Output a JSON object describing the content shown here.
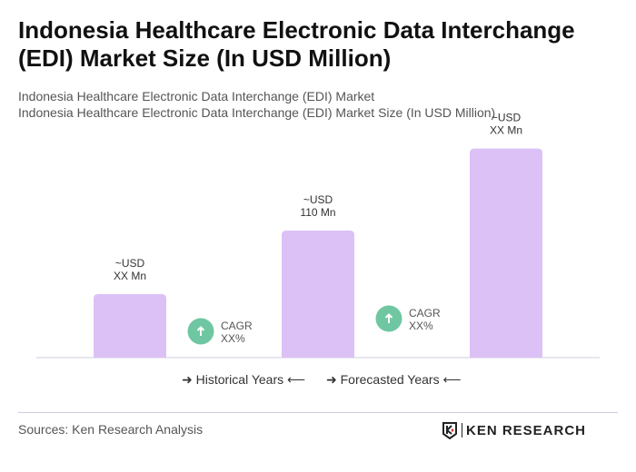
{
  "title": "Indonesia Healthcare Electronic Data Interchange (EDI) Market Size (In USD Million)",
  "subtitle1": "Indonesia Healthcare Electronic Data Interchange (EDI) Market",
  "subtitle2": "Indonesia Healthcare Electronic Data Interchange (EDI) Market Size (In USD Million)",
  "chart_data": {
    "type": "bar",
    "categories": [
      "",
      "",
      ""
    ],
    "values": [
      55,
      110,
      181
    ],
    "value_labels": [
      [
        "~USD",
        "XX Mn"
      ],
      [
        "~USD",
        "110 Mn"
      ],
      [
        "~USD",
        "XX Mn"
      ]
    ],
    "bar_color": "#dcc1f7",
    "cagr": [
      {
        "label": "CAGR",
        "value": "XX%"
      },
      {
        "label": "CAGR",
        "value": "XX%"
      }
    ],
    "cagr_color": "#6fc7a2",
    "legend": [
      "Historical Years",
      "Forecasted Years"
    ]
  },
  "footer": {
    "source": "Sources: Ken Research Analysis",
    "logo": "KEN RESEARCH"
  }
}
